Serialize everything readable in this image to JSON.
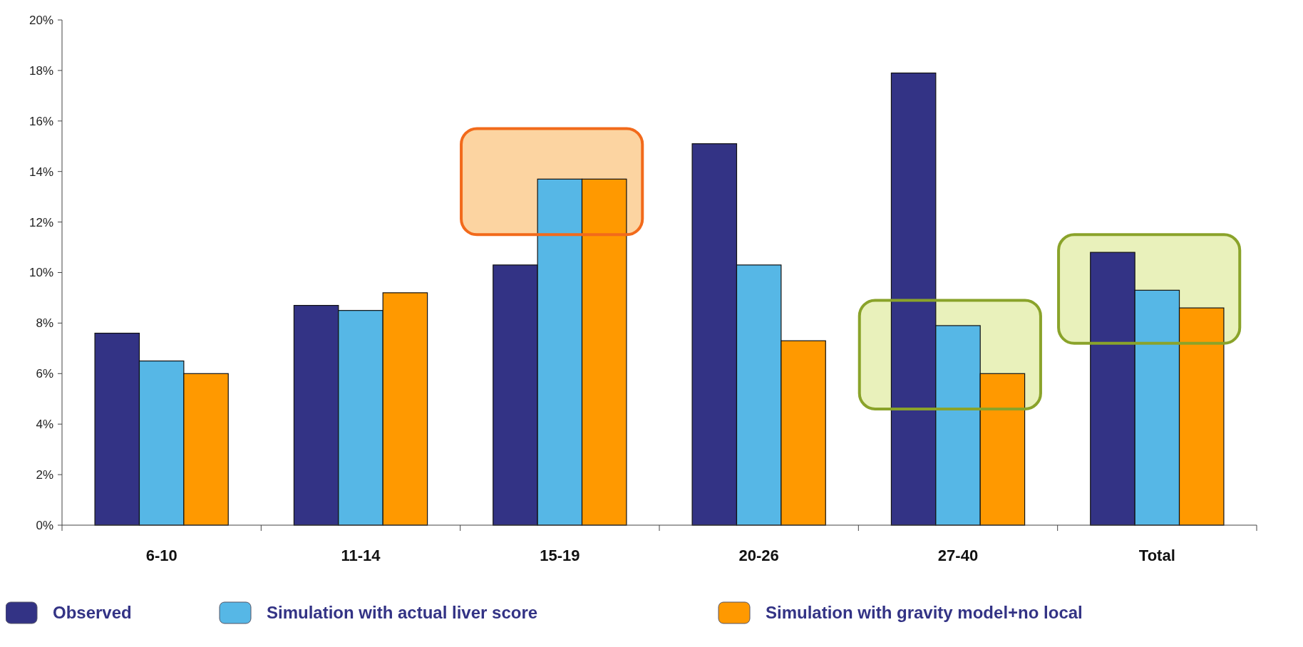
{
  "chart_data": {
    "type": "bar",
    "categories": [
      "6-10",
      "11-14",
      "15-19",
      "20-26",
      "27-40",
      "Total"
    ],
    "series": [
      {
        "name": "Observed",
        "color": "#333385",
        "values": [
          7.6,
          8.7,
          10.3,
          15.1,
          17.9,
          10.8
        ]
      },
      {
        "name": "Simulation with actual liver score",
        "color": "#56b7e6",
        "values": [
          6.5,
          8.5,
          13.7,
          10.3,
          7.9,
          9.3
        ]
      },
      {
        "name": "Simulation with gravity model+no local",
        "color": "#ff9900",
        "values": [
          6.0,
          9.2,
          13.7,
          7.3,
          6.0,
          8.6
        ]
      }
    ],
    "ylim": [
      0,
      20
    ],
    "yticks": [
      {
        "value": 0,
        "label": "0%"
      },
      {
        "value": 2,
        "label": "2%"
      },
      {
        "value": 4,
        "label": "4%"
      },
      {
        "value": 6,
        "label": "6%"
      },
      {
        "value": 8,
        "label": "8%"
      },
      {
        "value": 10,
        "label": "10%"
      },
      {
        "value": 12,
        "label": "12%"
      },
      {
        "value": 14,
        "label": "14%"
      },
      {
        "value": 16,
        "label": "16%"
      },
      {
        "value": 18,
        "label": "18%"
      },
      {
        "value": 20,
        "label": "20%"
      }
    ],
    "grid": false,
    "legend": "bottom"
  }
}
